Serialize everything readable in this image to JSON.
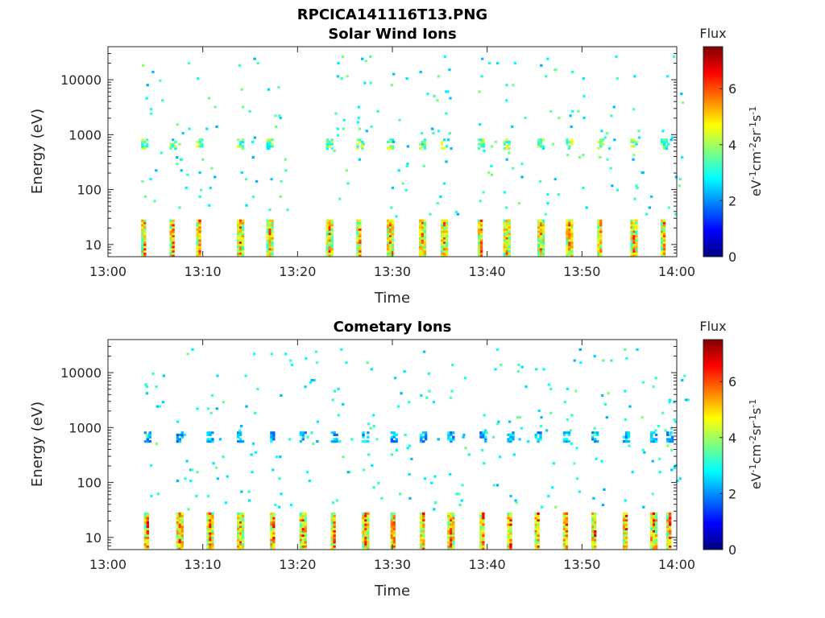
{
  "figure": {
    "title": "RPCICA141116T13.PNG"
  },
  "colorscale": {
    "stops": [
      "#00007f",
      "#0000ff",
      "#007fff",
      "#00ffff",
      "#7fff7f",
      "#ffff00",
      "#ff7f00",
      "#ff0000",
      "#7f0000"
    ]
  },
  "chart_data": [
    {
      "type": "heatmap",
      "title": "Solar Wind Ions",
      "xlabel": "Time",
      "ylabel": "Energy (eV)",
      "x_tick_labels": [
        "13:00",
        "13:10",
        "13:20",
        "13:30",
        "13:40",
        "13:50",
        "14:00"
      ],
      "x_range_minutes": [
        0,
        60
      ],
      "y_scale": "log",
      "y_tick_values": [
        10,
        100,
        1000,
        10000
      ],
      "y_tick_labels": [
        "10",
        "100",
        "1000",
        "10000"
      ],
      "y_range": [
        6,
        40000
      ],
      "colorbar": {
        "title": "Flux",
        "label": "eV-1cm-2sr-1s-1",
        "tick_values": [
          0,
          2,
          4,
          6
        ],
        "tick_labels": [
          "0",
          "2",
          "4",
          "6"
        ],
        "range": [
          0,
          7.5
        ]
      },
      "bursts_minutes": [
        3.5,
        6.5,
        9.3,
        13.6,
        16.7,
        23.0,
        26.2,
        29.4,
        32.8,
        35.1,
        39.0,
        41.7,
        45.3,
        48.3,
        51.6,
        55.1,
        58.3
      ],
      "low_energy_peak_flux": 6.5,
      "low_energy_range_eV": [
        6,
        28
      ],
      "main_band_energy_eV": 700,
      "main_band_flux": 4.3
    },
    {
      "type": "heatmap",
      "title": "Cometary Ions",
      "xlabel": "Time",
      "ylabel": "Energy (eV)",
      "x_tick_labels": [
        "13:00",
        "13:10",
        "13:20",
        "13:30",
        "13:40",
        "13:50",
        "14:00"
      ],
      "x_range_minutes": [
        0,
        60
      ],
      "y_scale": "log",
      "y_tick_values": [
        10,
        100,
        1000,
        10000
      ],
      "y_tick_labels": [
        "10",
        "100",
        "1000",
        "10000"
      ],
      "y_range": [
        6,
        40000
      ],
      "colorbar": {
        "title": "Flux",
        "label": "eV-1cm-2sr-1s-1",
        "tick_values": [
          0,
          2,
          4,
          6
        ],
        "tick_labels": [
          "0",
          "2",
          "4",
          "6"
        ],
        "range": [
          0,
          7.5
        ]
      },
      "bursts_minutes": [
        3.8,
        7.2,
        10.4,
        13.6,
        17.1,
        20.2,
        23.5,
        26.8,
        29.8,
        32.9,
        35.8,
        39.2,
        42.1,
        45.0,
        48.0,
        51.0,
        54.3,
        57.2,
        58.9
      ],
      "low_energy_peak_flux": 6.8,
      "low_energy_range_eV": [
        6,
        28
      ],
      "main_band_energy_eV": 650,
      "main_band_flux": 2.6
    }
  ]
}
